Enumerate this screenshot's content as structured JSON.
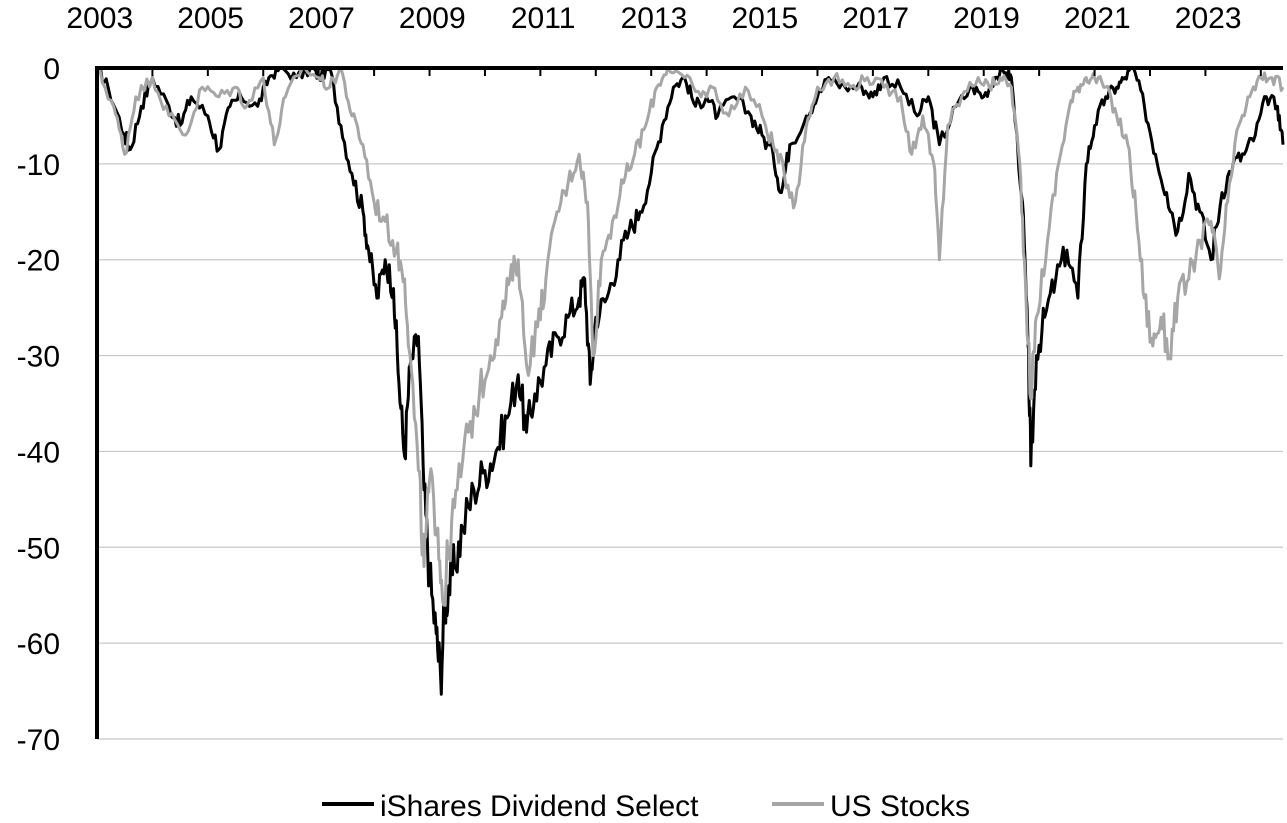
{
  "chart_data": {
    "type": "line",
    "title": "",
    "xlabel": "",
    "ylabel": "",
    "x_axis_position": "top",
    "xlim": [
      2003.0,
      2024.4
    ],
    "ylim": [
      -70,
      0
    ],
    "x_ticks": [
      2003,
      2005,
      2007,
      2009,
      2011,
      2013,
      2015,
      2017,
      2019,
      2021,
      2023
    ],
    "x_tick_labels": [
      "2003",
      "2005",
      "2007",
      "2009",
      "2011",
      "2013",
      "2015",
      "2017",
      "2019",
      "2021",
      "2023"
    ],
    "y_ticks": [
      0,
      -10,
      -20,
      -30,
      -40,
      -50,
      -60,
      -70
    ],
    "y_tick_labels": [
      "0",
      "-10",
      "-20",
      "-30",
      "-40",
      "-50",
      "-60",
      "-70"
    ],
    "grid": true,
    "legend_position": "bottom",
    "series": [
      {
        "name": "iShares Dividend Select",
        "color": "#000000",
        "points": [
          [
            2003.0,
            0
          ],
          [
            2003.2,
            -2
          ],
          [
            2003.5,
            -7
          ],
          [
            2003.6,
            -8.5
          ],
          [
            2003.8,
            -4
          ],
          [
            2004.0,
            -1
          ],
          [
            2004.3,
            -4
          ],
          [
            2004.5,
            -6
          ],
          [
            2004.7,
            -3
          ],
          [
            2005.0,
            -5
          ],
          [
            2005.2,
            -8.5
          ],
          [
            2005.4,
            -4
          ],
          [
            2005.6,
            -3
          ],
          [
            2005.9,
            -4
          ],
          [
            2006.1,
            -1
          ],
          [
            2006.3,
            0
          ],
          [
            2006.6,
            -1
          ],
          [
            2006.9,
            0
          ],
          [
            2007.0,
            -1
          ],
          [
            2007.2,
            0
          ],
          [
            2007.4,
            -6
          ],
          [
            2007.6,
            -11
          ],
          [
            2007.8,
            -15
          ],
          [
            2007.9,
            -19
          ],
          [
            2008.05,
            -24
          ],
          [
            2008.2,
            -20
          ],
          [
            2008.35,
            -23
          ],
          [
            2008.45,
            -33
          ],
          [
            2008.55,
            -40.5
          ],
          [
            2008.65,
            -31
          ],
          [
            2008.8,
            -28
          ],
          [
            2008.9,
            -44
          ],
          [
            2009.0,
            -53
          ],
          [
            2009.12,
            -59
          ],
          [
            2009.2,
            -63.5
          ],
          [
            2009.28,
            -56
          ],
          [
            2009.35,
            -54
          ],
          [
            2009.45,
            -52
          ],
          [
            2009.6,
            -48
          ],
          [
            2009.8,
            -44
          ],
          [
            2010.0,
            -42
          ],
          [
            2010.2,
            -40
          ],
          [
            2010.4,
            -36.5
          ],
          [
            2010.6,
            -32
          ],
          [
            2010.75,
            -38
          ],
          [
            2010.9,
            -34
          ],
          [
            2011.1,
            -31
          ],
          [
            2011.3,
            -28
          ],
          [
            2011.5,
            -26
          ],
          [
            2011.7,
            -24
          ],
          [
            2011.8,
            -22
          ],
          [
            2011.9,
            -33
          ],
          [
            2012.0,
            -26
          ],
          [
            2012.2,
            -24
          ],
          [
            2012.4,
            -20
          ],
          [
            2012.6,
            -17
          ],
          [
            2012.8,
            -15
          ],
          [
            2013.0,
            -11
          ],
          [
            2013.2,
            -6
          ],
          [
            2013.4,
            -2
          ],
          [
            2013.6,
            -1
          ],
          [
            2013.8,
            -4
          ],
          [
            2014.0,
            -3
          ],
          [
            2014.2,
            -5
          ],
          [
            2014.5,
            -3
          ],
          [
            2014.8,
            -5
          ],
          [
            2015.0,
            -7
          ],
          [
            2015.2,
            -9
          ],
          [
            2015.35,
            -13
          ],
          [
            2015.5,
            -8
          ],
          [
            2015.8,
            -5
          ],
          [
            2016.0,
            -3
          ],
          [
            2016.2,
            -1
          ],
          [
            2016.5,
            -2
          ],
          [
            2016.8,
            -2
          ],
          [
            2017.0,
            -3
          ],
          [
            2017.2,
            -1
          ],
          [
            2017.5,
            -2
          ],
          [
            2017.8,
            -5
          ],
          [
            2018.0,
            -3
          ],
          [
            2018.2,
            -8
          ],
          [
            2018.5,
            -4
          ],
          [
            2018.8,
            -2
          ],
          [
            2019.0,
            -3
          ],
          [
            2019.2,
            -1
          ],
          [
            2019.4,
            -0.5
          ],
          [
            2019.5,
            -1
          ],
          [
            2019.7,
            -14
          ],
          [
            2019.8,
            -29
          ],
          [
            2019.85,
            -41.5
          ],
          [
            2019.95,
            -30
          ],
          [
            2020.1,
            -26
          ],
          [
            2020.3,
            -22
          ],
          [
            2020.5,
            -19
          ],
          [
            2020.7,
            -24
          ],
          [
            2020.85,
            -10
          ],
          [
            2021.0,
            -6
          ],
          [
            2021.2,
            -3
          ],
          [
            2021.4,
            -2
          ],
          [
            2021.55,
            -1
          ],
          [
            2021.7,
            0
          ],
          [
            2021.9,
            -4
          ],
          [
            2022.1,
            -9
          ],
          [
            2022.3,
            -13
          ],
          [
            2022.5,
            -17
          ],
          [
            2022.7,
            -11
          ],
          [
            2022.9,
            -15
          ],
          [
            2023.1,
            -20
          ],
          [
            2023.3,
            -13
          ],
          [
            2023.5,
            -10
          ],
          [
            2023.7,
            -9
          ],
          [
            2023.9,
            -7
          ],
          [
            2024.1,
            -3
          ],
          [
            2024.3,
            -4
          ],
          [
            2024.4,
            -8
          ]
        ]
      },
      {
        "name": "US Stocks",
        "color": "#a6a6a6",
        "points": [
          [
            2003.0,
            0
          ],
          [
            2003.3,
            -4
          ],
          [
            2003.5,
            -9
          ],
          [
            2003.7,
            -3
          ],
          [
            2004.0,
            -1
          ],
          [
            2004.3,
            -5
          ],
          [
            2004.6,
            -7
          ],
          [
            2004.9,
            -2
          ],
          [
            2005.2,
            -3
          ],
          [
            2005.5,
            -2
          ],
          [
            2005.7,
            -4
          ],
          [
            2006.0,
            -1
          ],
          [
            2006.2,
            -8
          ],
          [
            2006.4,
            -3
          ],
          [
            2006.7,
            0
          ],
          [
            2007.0,
            -1
          ],
          [
            2007.2,
            -2
          ],
          [
            2007.4,
            0
          ],
          [
            2007.6,
            -5
          ],
          [
            2007.8,
            -8
          ],
          [
            2008.0,
            -14
          ],
          [
            2008.2,
            -16
          ],
          [
            2008.4,
            -19
          ],
          [
            2008.55,
            -22
          ],
          [
            2008.65,
            -30
          ],
          [
            2008.8,
            -42
          ],
          [
            2008.9,
            -52
          ],
          [
            2009.0,
            -43
          ],
          [
            2009.15,
            -48
          ],
          [
            2009.25,
            -56
          ],
          [
            2009.35,
            -50
          ],
          [
            2009.5,
            -44
          ],
          [
            2009.7,
            -38
          ],
          [
            2009.9,
            -34
          ],
          [
            2010.1,
            -30
          ],
          [
            2010.3,
            -26
          ],
          [
            2010.45,
            -22
          ],
          [
            2010.6,
            -20
          ],
          [
            2010.75,
            -31
          ],
          [
            2010.95,
            -27
          ],
          [
            2011.1,
            -22
          ],
          [
            2011.3,
            -15
          ],
          [
            2011.5,
            -12
          ],
          [
            2011.7,
            -9
          ],
          [
            2011.85,
            -14
          ],
          [
            2011.95,
            -30
          ],
          [
            2012.1,
            -20
          ],
          [
            2012.3,
            -16
          ],
          [
            2012.5,
            -12
          ],
          [
            2012.7,
            -9
          ],
          [
            2012.9,
            -6
          ],
          [
            2013.1,
            -2
          ],
          [
            2013.3,
            0
          ],
          [
            2013.6,
            -1
          ],
          [
            2013.9,
            -3
          ],
          [
            2014.1,
            -2
          ],
          [
            2014.4,
            -5
          ],
          [
            2014.7,
            -2
          ],
          [
            2015.0,
            -5
          ],
          [
            2015.2,
            -8
          ],
          [
            2015.4,
            -11
          ],
          [
            2015.6,
            -14
          ],
          [
            2015.8,
            -6
          ],
          [
            2016.0,
            -2
          ],
          [
            2016.3,
            -1
          ],
          [
            2016.6,
            -2
          ],
          [
            2016.9,
            -1
          ],
          [
            2017.2,
            -2
          ],
          [
            2017.5,
            -3
          ],
          [
            2017.7,
            -9
          ],
          [
            2017.9,
            -5
          ],
          [
            2018.1,
            -10
          ],
          [
            2018.2,
            -20
          ],
          [
            2018.35,
            -6
          ],
          [
            2018.6,
            -3
          ],
          [
            2018.9,
            -1
          ],
          [
            2019.1,
            -2
          ],
          [
            2019.3,
            -1
          ],
          [
            2019.5,
            -2
          ],
          [
            2019.65,
            -10
          ],
          [
            2019.75,
            -22
          ],
          [
            2019.85,
            -34.5
          ],
          [
            2019.95,
            -26
          ],
          [
            2020.15,
            -18
          ],
          [
            2020.35,
            -10
          ],
          [
            2020.55,
            -4
          ],
          [
            2020.7,
            -2
          ],
          [
            2020.85,
            -1
          ],
          [
            2021.0,
            -1
          ],
          [
            2021.2,
            -2
          ],
          [
            2021.4,
            -5
          ],
          [
            2021.6,
            -8
          ],
          [
            2021.75,
            -15
          ],
          [
            2021.9,
            -24
          ],
          [
            2022.05,
            -29
          ],
          [
            2022.2,
            -26
          ],
          [
            2022.35,
            -30
          ],
          [
            2022.5,
            -24
          ],
          [
            2022.7,
            -22
          ],
          [
            2022.9,
            -18
          ],
          [
            2023.1,
            -16
          ],
          [
            2023.25,
            -22
          ],
          [
            2023.4,
            -14
          ],
          [
            2023.6,
            -6
          ],
          [
            2023.8,
            -3
          ],
          [
            2024.0,
            -1
          ],
          [
            2024.2,
            -1
          ],
          [
            2024.4,
            -2
          ]
        ]
      }
    ]
  }
}
